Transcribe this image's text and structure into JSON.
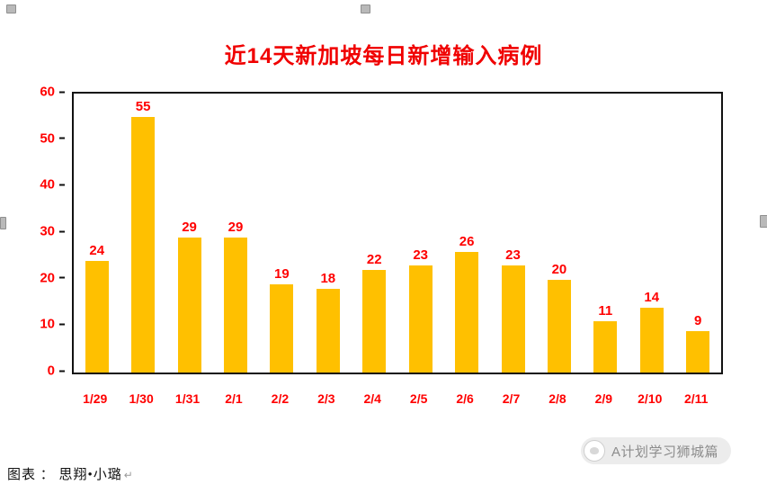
{
  "chart_data": {
    "type": "bar",
    "title": "近14天新加坡每日新增输入病例",
    "categories": [
      "1/29",
      "1/30",
      "1/31",
      "2/1",
      "2/2",
      "2/3",
      "2/4",
      "2/5",
      "2/6",
      "2/7",
      "2/8",
      "2/9",
      "2/10",
      "2/11"
    ],
    "values": [
      24,
      55,
      29,
      29,
      19,
      18,
      22,
      23,
      26,
      23,
      20,
      11,
      14,
      9
    ],
    "xlabel": "",
    "ylabel": "",
    "ylim": [
      0,
      60
    ],
    "yticks": [
      0,
      10,
      20,
      30,
      40,
      50,
      60
    ],
    "grid": false,
    "legend": false,
    "bar_color": "#FFC000",
    "value_label_color": "#FF0000",
    "tick_label_color": "#FF0000",
    "title_color": "#F00000"
  },
  "footer": {
    "caption": "图表 ： 思翔•小璐",
    "paragraph_mark": "↵"
  },
  "watermark": {
    "text": "A计划学习狮城篇"
  },
  "colors": {
    "background": "#FFFFFF",
    "axis_border": "#111111",
    "watermark_bg": "#EAEAEA",
    "watermark_text": "#8C8C8C"
  }
}
